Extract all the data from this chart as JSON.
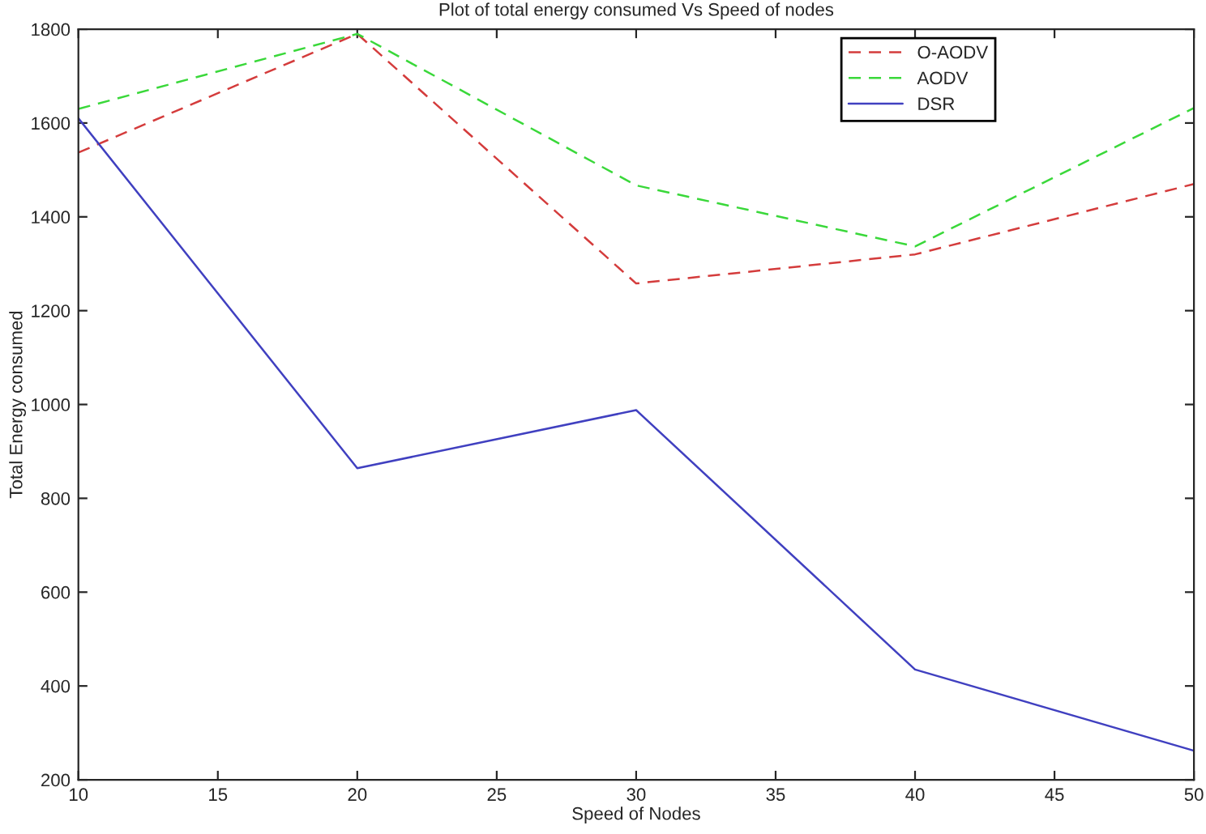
{
  "chart_data": {
    "type": "line",
    "title": "Plot of total energy consumed Vs Speed of nodes",
    "xlabel": "Speed of Nodes",
    "ylabel": "Total Energy consumed",
    "x": [
      10,
      20,
      30,
      40,
      50
    ],
    "series": [
      {
        "name": "O-AODV",
        "color": "#d43c3c",
        "line_style": "dashed",
        "values": [
          1537,
          1790,
          1258,
          1320,
          1470
        ]
      },
      {
        "name": "AODV",
        "color": "#3ad83a",
        "line_style": "dashed",
        "values": [
          1630,
          1790,
          1467,
          1337,
          1632
        ]
      },
      {
        "name": "DSR",
        "color": "#4040c0",
        "line_style": "solid",
        "values": [
          1610,
          864,
          988,
          435,
          262
        ]
      }
    ],
    "xlim": [
      10,
      50
    ],
    "xticks": [
      10,
      15,
      20,
      25,
      30,
      35,
      40,
      45,
      50
    ],
    "ylim": [
      200,
      1800
    ],
    "yticks": [
      200,
      400,
      600,
      800,
      1000,
      1200,
      1400,
      1600,
      1800
    ],
    "grid": false,
    "legend": "top right",
    "marker": "none"
  }
}
